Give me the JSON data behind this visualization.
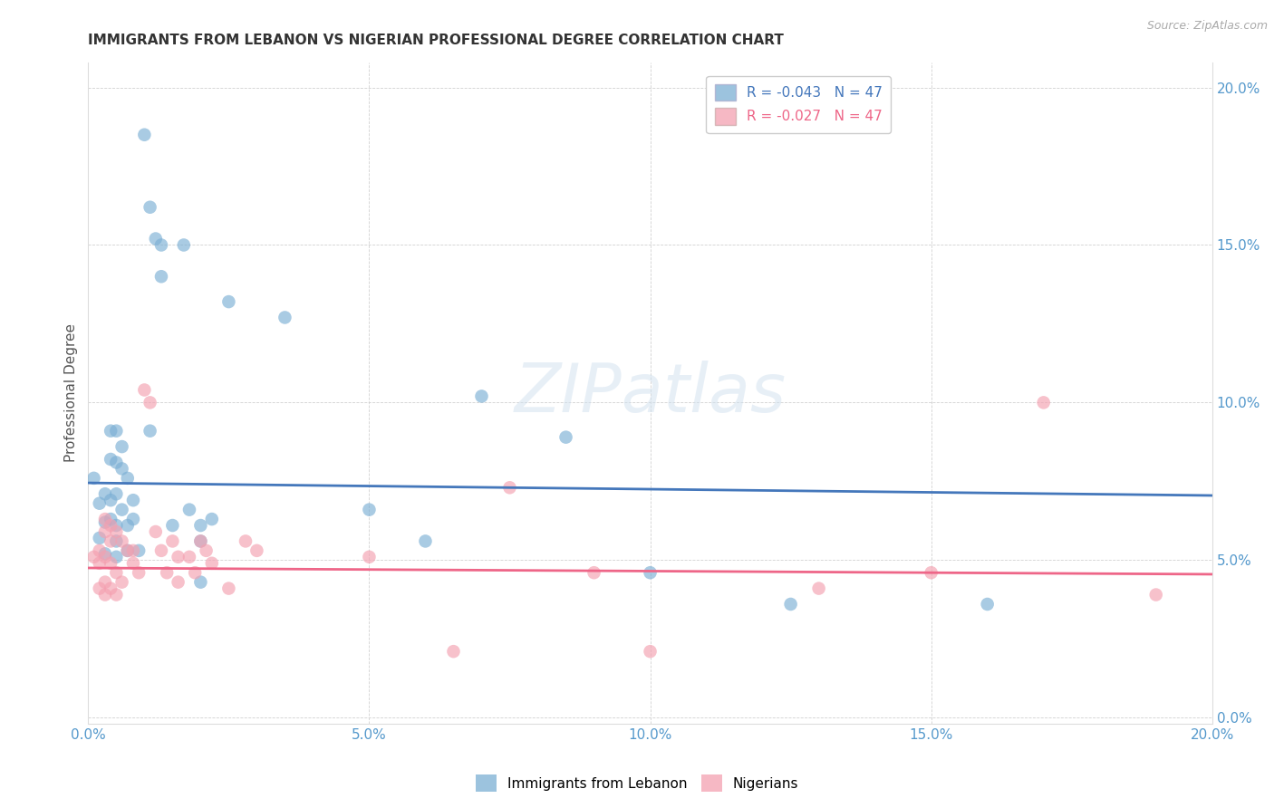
{
  "title": "IMMIGRANTS FROM LEBANON VS NIGERIAN PROFESSIONAL DEGREE CORRELATION CHART",
  "source": "Source: ZipAtlas.com",
  "ylabel": "Professional Degree",
  "watermark": "ZIPatlas",
  "legend_blue_r": "R = -0.043",
  "legend_blue_n": "N = 47",
  "legend_pink_r": "R = -0.027",
  "legend_pink_n": "N = 47",
  "legend_label_blue": "Immigrants from Lebanon",
  "legend_label_pink": "Nigerians",
  "xlim": [
    0.0,
    0.2
  ],
  "ylim": [
    -0.002,
    0.208
  ],
  "x_ticks": [
    0.0,
    0.05,
    0.1,
    0.15,
    0.2
  ],
  "y_ticks": [
    0.0,
    0.05,
    0.1,
    0.15,
    0.2
  ],
  "blue_color": "#7BAFD4",
  "pink_color": "#F4A0B0",
  "blue_line_color": "#4477BB",
  "pink_line_color": "#EE6688",
  "tick_color": "#5599CC",
  "blue_scatter": [
    [
      0.001,
      0.076
    ],
    [
      0.002,
      0.068
    ],
    [
      0.002,
      0.057
    ],
    [
      0.003,
      0.071
    ],
    [
      0.003,
      0.062
    ],
    [
      0.003,
      0.052
    ],
    [
      0.004,
      0.091
    ],
    [
      0.004,
      0.082
    ],
    [
      0.004,
      0.069
    ],
    [
      0.004,
      0.063
    ],
    [
      0.005,
      0.091
    ],
    [
      0.005,
      0.081
    ],
    [
      0.005,
      0.071
    ],
    [
      0.005,
      0.061
    ],
    [
      0.005,
      0.056
    ],
    [
      0.005,
      0.051
    ],
    [
      0.006,
      0.086
    ],
    [
      0.006,
      0.079
    ],
    [
      0.006,
      0.066
    ],
    [
      0.007,
      0.076
    ],
    [
      0.007,
      0.061
    ],
    [
      0.007,
      0.053
    ],
    [
      0.008,
      0.069
    ],
    [
      0.008,
      0.063
    ],
    [
      0.009,
      0.053
    ],
    [
      0.01,
      0.185
    ],
    [
      0.011,
      0.162
    ],
    [
      0.011,
      0.091
    ],
    [
      0.012,
      0.152
    ],
    [
      0.013,
      0.15
    ],
    [
      0.013,
      0.14
    ],
    [
      0.015,
      0.061
    ],
    [
      0.017,
      0.15
    ],
    [
      0.018,
      0.066
    ],
    [
      0.02,
      0.061
    ],
    [
      0.02,
      0.056
    ],
    [
      0.02,
      0.043
    ],
    [
      0.022,
      0.063
    ],
    [
      0.025,
      0.132
    ],
    [
      0.035,
      0.127
    ],
    [
      0.05,
      0.066
    ],
    [
      0.06,
      0.056
    ],
    [
      0.07,
      0.102
    ],
    [
      0.085,
      0.089
    ],
    [
      0.1,
      0.046
    ],
    [
      0.125,
      0.036
    ],
    [
      0.16,
      0.036
    ]
  ],
  "pink_scatter": [
    [
      0.001,
      0.051
    ],
    [
      0.002,
      0.053
    ],
    [
      0.002,
      0.049
    ],
    [
      0.002,
      0.041
    ],
    [
      0.003,
      0.063
    ],
    [
      0.003,
      0.059
    ],
    [
      0.003,
      0.051
    ],
    [
      0.003,
      0.043
    ],
    [
      0.003,
      0.039
    ],
    [
      0.004,
      0.061
    ],
    [
      0.004,
      0.056
    ],
    [
      0.004,
      0.049
    ],
    [
      0.004,
      0.041
    ],
    [
      0.005,
      0.059
    ],
    [
      0.005,
      0.046
    ],
    [
      0.005,
      0.039
    ],
    [
      0.006,
      0.056
    ],
    [
      0.006,
      0.043
    ],
    [
      0.007,
      0.053
    ],
    [
      0.008,
      0.053
    ],
    [
      0.008,
      0.049
    ],
    [
      0.009,
      0.046
    ],
    [
      0.01,
      0.104
    ],
    [
      0.011,
      0.1
    ],
    [
      0.012,
      0.059
    ],
    [
      0.013,
      0.053
    ],
    [
      0.014,
      0.046
    ],
    [
      0.015,
      0.056
    ],
    [
      0.016,
      0.051
    ],
    [
      0.016,
      0.043
    ],
    [
      0.018,
      0.051
    ],
    [
      0.019,
      0.046
    ],
    [
      0.02,
      0.056
    ],
    [
      0.021,
      0.053
    ],
    [
      0.022,
      0.049
    ],
    [
      0.025,
      0.041
    ],
    [
      0.028,
      0.056
    ],
    [
      0.03,
      0.053
    ],
    [
      0.05,
      0.051
    ],
    [
      0.065,
      0.021
    ],
    [
      0.075,
      0.073
    ],
    [
      0.09,
      0.046
    ],
    [
      0.1,
      0.021
    ],
    [
      0.13,
      0.041
    ],
    [
      0.15,
      0.046
    ],
    [
      0.17,
      0.1
    ],
    [
      0.19,
      0.039
    ]
  ],
  "blue_trend": [
    0.0,
    0.2,
    0.0745,
    0.0705
  ],
  "pink_trend": [
    0.0,
    0.2,
    0.0475,
    0.0455
  ]
}
